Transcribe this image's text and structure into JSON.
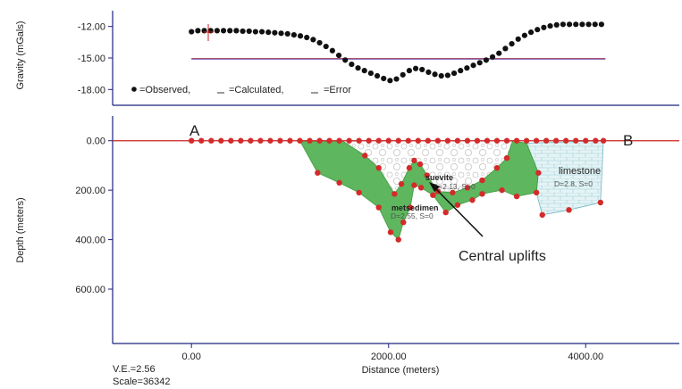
{
  "chart_data": [
    {
      "type": "scatter",
      "ylabel": "Gravity (mGals)",
      "yticks": [
        "-12.00",
        "-15.00",
        "-18.00"
      ],
      "ylim": [
        -19.5,
        -10.5
      ],
      "xlim": [
        -800,
        4950
      ],
      "legend_text": {
        "observed": "=Observed,",
        "calculated": "=Calculated,",
        "error": "=Error"
      },
      "legend_position": "bottom-left",
      "colors": {
        "observed": "#111111",
        "calculated": "#cc2222",
        "error": "#6f4fa8",
        "axis": "#1a237e"
      },
      "series": [
        {
          "name": "Observed",
          "x": [
            0,
            65,
            130,
            195,
            260,
            325,
            390,
            455,
            520,
            585,
            650,
            715,
            780,
            845,
            910,
            975,
            1040,
            1105,
            1170,
            1235,
            1300,
            1365,
            1430,
            1495,
            1560,
            1625,
            1690,
            1755,
            1820,
            1885,
            1950,
            2015,
            2080,
            2145,
            2210,
            2275,
            2340,
            2405,
            2470,
            2535,
            2600,
            2665,
            2730,
            2795,
            2860,
            2925,
            2990,
            3055,
            3120,
            3185,
            3250,
            3315,
            3380,
            3445,
            3510,
            3575,
            3640,
            3705,
            3770,
            3835,
            3900,
            3965,
            4030,
            4095,
            4160
          ],
          "y": [
            -12.5,
            -12.4,
            -12.4,
            -12.4,
            -12.4,
            -12.4,
            -12.4,
            -12.4,
            -12.45,
            -12.45,
            -12.5,
            -12.5,
            -12.55,
            -12.6,
            -12.65,
            -12.7,
            -12.8,
            -12.9,
            -13.05,
            -13.25,
            -13.55,
            -13.9,
            -14.3,
            -14.75,
            -15.2,
            -15.6,
            -15.95,
            -16.2,
            -16.45,
            -16.7,
            -16.95,
            -17.15,
            -17.0,
            -16.6,
            -16.2,
            -16.0,
            -16.1,
            -16.35,
            -16.55,
            -16.7,
            -16.65,
            -16.45,
            -16.2,
            -15.95,
            -15.7,
            -15.45,
            -15.2,
            -14.9,
            -14.55,
            -14.1,
            -13.65,
            -13.2,
            -12.85,
            -12.55,
            -12.3,
            -12.1,
            -11.95,
            -11.85,
            -11.8,
            -11.8,
            -11.8,
            -11.8,
            -11.8,
            -11.8,
            -11.8
          ]
        },
        {
          "name": "Calculated",
          "x": [
            0,
            4200
          ],
          "y": [
            -15.05,
            -15.05
          ]
        },
        {
          "name": "Error",
          "x": [
            0,
            4200
          ],
          "y": [
            -15.1,
            -15.1
          ]
        }
      ]
    },
    {
      "type": "area",
      "ylabel": "Depth (meters)",
      "xlabel": "Distance (meters)",
      "yticks": [
        "0.00",
        "200.00",
        "400.00",
        "600.00"
      ],
      "xticks": [
        "0.00",
        "2000.00",
        "4000.00"
      ],
      "ylim": [
        -100,
        820
      ],
      "xlim": [
        -800,
        4950
      ],
      "profile_labels": {
        "start": "A",
        "end": "B"
      },
      "annotation": "Central uplifts",
      "ve_text": "V.E.=2.56",
      "scale_text": "Scale=36342",
      "bodies": [
        {
          "name": "suevite",
          "density_text": "D=2.13, S=0",
          "color": "#ffffff",
          "points": [
            [
              1530,
              0
            ],
            [
              3260,
              0
            ],
            [
              3200,
              70
            ],
            [
              3100,
              110
            ],
            [
              2950,
              160
            ],
            [
              2800,
              190
            ],
            [
              2650,
              210
            ],
            [
              2500,
              205
            ],
            [
              2390,
              140
            ],
            [
              2320,
              95
            ],
            [
              2260,
              80
            ],
            [
              2210,
              110
            ],
            [
              2130,
              175
            ],
            [
              2060,
              215
            ],
            [
              1900,
              110
            ],
            [
              1760,
              60
            ]
          ]
        },
        {
          "name": "limestone",
          "density_text": "D=2.8, S=0",
          "color": "#e4f3f5",
          "points": [
            [
              3400,
              10
            ],
            [
              4180,
              0
            ],
            [
              4150,
              250
            ],
            [
              3830,
              280
            ],
            [
              3560,
              300
            ],
            [
              3500,
              210
            ],
            [
              3520,
              130
            ]
          ]
        },
        {
          "name": "metsedimen",
          "density_text": "D=2.55, S=0",
          "color": "#55b255",
          "points": [
            [
              1100,
              0
            ],
            [
              1530,
              0
            ],
            [
              1760,
              60
            ],
            [
              1900,
              110
            ],
            [
              2060,
              215
            ],
            [
              2130,
              175
            ],
            [
              2210,
              110
            ],
            [
              2260,
              80
            ],
            [
              2320,
              95
            ],
            [
              2390,
              140
            ],
            [
              2500,
              205
            ],
            [
              2650,
              210
            ],
            [
              2800,
              190
            ],
            [
              2950,
              160
            ],
            [
              3100,
              110
            ],
            [
              3200,
              70
            ],
            [
              3260,
              0
            ],
            [
              3400,
              10
            ],
            [
              3520,
              130
            ],
            [
              3500,
              210
            ],
            [
              3300,
              225
            ],
            [
              3150,
              200
            ],
            [
              2950,
              215
            ],
            [
              2850,
              240
            ],
            [
              2700,
              260
            ],
            [
              2580,
              290
            ],
            [
              2450,
              220
            ],
            [
              2330,
              190
            ],
            [
              2260,
              180
            ],
            [
              2220,
              270
            ],
            [
              2150,
              330
            ],
            [
              2100,
              400
            ],
            [
              2020,
              370
            ],
            [
              1900,
              270
            ],
            [
              1700,
              210
            ],
            [
              1500,
              170
            ],
            [
              1280,
              130
            ]
          ]
        }
      ],
      "vertices": [
        [
          0,
          0
        ],
        [
          100,
          0
        ],
        [
          200,
          0
        ],
        [
          300,
          0
        ],
        [
          400,
          0
        ],
        [
          500,
          0
        ],
        [
          600,
          0
        ],
        [
          700,
          0
        ],
        [
          800,
          0
        ],
        [
          900,
          0
        ],
        [
          1000,
          0
        ],
        [
          1100,
          0
        ],
        [
          1200,
          0
        ],
        [
          1300,
          0
        ],
        [
          1400,
          0
        ],
        [
          1500,
          0
        ],
        [
          1600,
          0
        ],
        [
          1700,
          0
        ],
        [
          1800,
          0
        ],
        [
          1900,
          0
        ],
        [
          2000,
          0
        ],
        [
          2100,
          0
        ],
        [
          2200,
          0
        ],
        [
          2300,
          0
        ],
        [
          2400,
          0
        ],
        [
          2500,
          0
        ],
        [
          2600,
          0
        ],
        [
          2700,
          0
        ],
        [
          2800,
          0
        ],
        [
          2900,
          0
        ],
        [
          3000,
          0
        ],
        [
          3100,
          0
        ],
        [
          3200,
          0
        ],
        [
          3300,
          0
        ],
        [
          3400,
          0
        ],
        [
          3500,
          0
        ],
        [
          3600,
          0
        ],
        [
          3700,
          0
        ],
        [
          3800,
          0
        ],
        [
          3900,
          0
        ],
        [
          4000,
          0
        ],
        [
          4100,
          0
        ],
        [
          4180,
          0
        ],
        [
          1280,
          130
        ],
        [
          1500,
          170
        ],
        [
          1700,
          210
        ],
        [
          1900,
          270
        ],
        [
          2020,
          370
        ],
        [
          2100,
          400
        ],
        [
          2150,
          330
        ],
        [
          2220,
          270
        ],
        [
          2260,
          180
        ],
        [
          2330,
          190
        ],
        [
          2450,
          220
        ],
        [
          2580,
          290
        ],
        [
          2700,
          260
        ],
        [
          2850,
          240
        ],
        [
          2950,
          215
        ],
        [
          3150,
          200
        ],
        [
          3300,
          225
        ],
        [
          3500,
          210
        ],
        [
          3560,
          300
        ],
        [
          3830,
          280
        ],
        [
          4150,
          250
        ],
        [
          1760,
          60
        ],
        [
          1900,
          110
        ],
        [
          2060,
          215
        ],
        [
          2130,
          175
        ],
        [
          2210,
          110
        ],
        [
          2260,
          80
        ],
        [
          2320,
          95
        ],
        [
          2390,
          140
        ],
        [
          2500,
          205
        ],
        [
          2650,
          210
        ],
        [
          2800,
          190
        ],
        [
          2950,
          160
        ],
        [
          3100,
          110
        ],
        [
          3200,
          70
        ],
        [
          3520,
          130
        ]
      ]
    }
  ]
}
